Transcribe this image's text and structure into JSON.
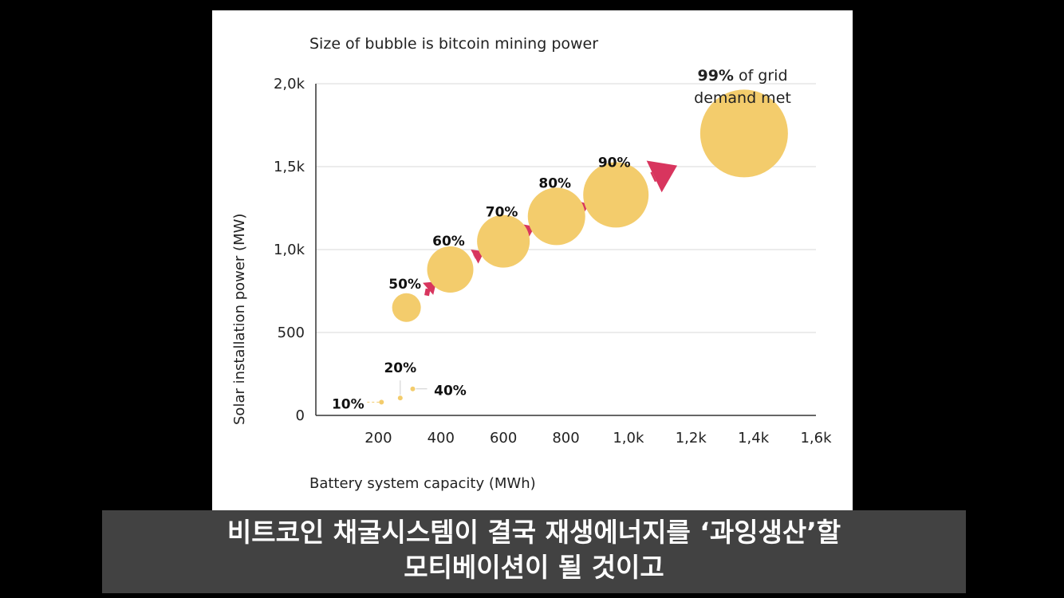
{
  "chart_data": {
    "type": "scatter",
    "title": "Size of bubble is bitcoin mining power",
    "xlabel": "Battery system capacity (MWh)",
    "ylabel": "Solar installation power (MW)",
    "xlim": [
      0,
      1600
    ],
    "ylim": [
      0,
      2000
    ],
    "x_ticks": [
      {
        "value": 200,
        "label": "200"
      },
      {
        "value": 400,
        "label": "400"
      },
      {
        "value": 600,
        "label": "600"
      },
      {
        "value": 800,
        "label": "800"
      },
      {
        "value": 1000,
        "label": "1,0k"
      },
      {
        "value": 1200,
        "label": "1,2k"
      },
      {
        "value": 1400,
        "label": "1,4k"
      },
      {
        "value": 1600,
        "label": "1,6k"
      }
    ],
    "y_ticks": [
      {
        "value": 0,
        "label": "0"
      },
      {
        "value": 500,
        "label": "500"
      },
      {
        "value": 1000,
        "label": "1,0k"
      },
      {
        "value": 1500,
        "label": "1,5k"
      },
      {
        "value": 2000,
        "label": "2,0k"
      }
    ],
    "grid": true,
    "bubble_color": "#f3cc6c",
    "arrow_color": "#d8355e",
    "points": [
      {
        "label": "10%",
        "x": 210,
        "y": 80,
        "size": 3
      },
      {
        "label": "20%",
        "x": 270,
        "y": 105,
        "size": 3
      },
      {
        "label": "40%",
        "x": 310,
        "y": 160,
        "size": 3
      },
      {
        "label": "50%",
        "x": 290,
        "y": 650,
        "size": 18
      },
      {
        "label": "60%",
        "x": 430,
        "y": 880,
        "size": 29
      },
      {
        "label": "70%",
        "x": 600,
        "y": 1050,
        "size": 33
      },
      {
        "label": "80%",
        "x": 770,
        "y": 1200,
        "size": 36
      },
      {
        "label": "90%",
        "x": 960,
        "y": 1330,
        "size": 41
      },
      {
        "label": "99%",
        "x": 1370,
        "y": 1700,
        "size": 55
      }
    ],
    "annotations": {
      "final_bold": "99%",
      "final_rest_1": "of grid",
      "final_rest_2": "demand met"
    }
  },
  "subtitle": {
    "line1": "비트코인 채굴시스템이 결국 재생에너지를 ‘과잉생산’할",
    "line2": "모티베이션이 될 것이고"
  }
}
